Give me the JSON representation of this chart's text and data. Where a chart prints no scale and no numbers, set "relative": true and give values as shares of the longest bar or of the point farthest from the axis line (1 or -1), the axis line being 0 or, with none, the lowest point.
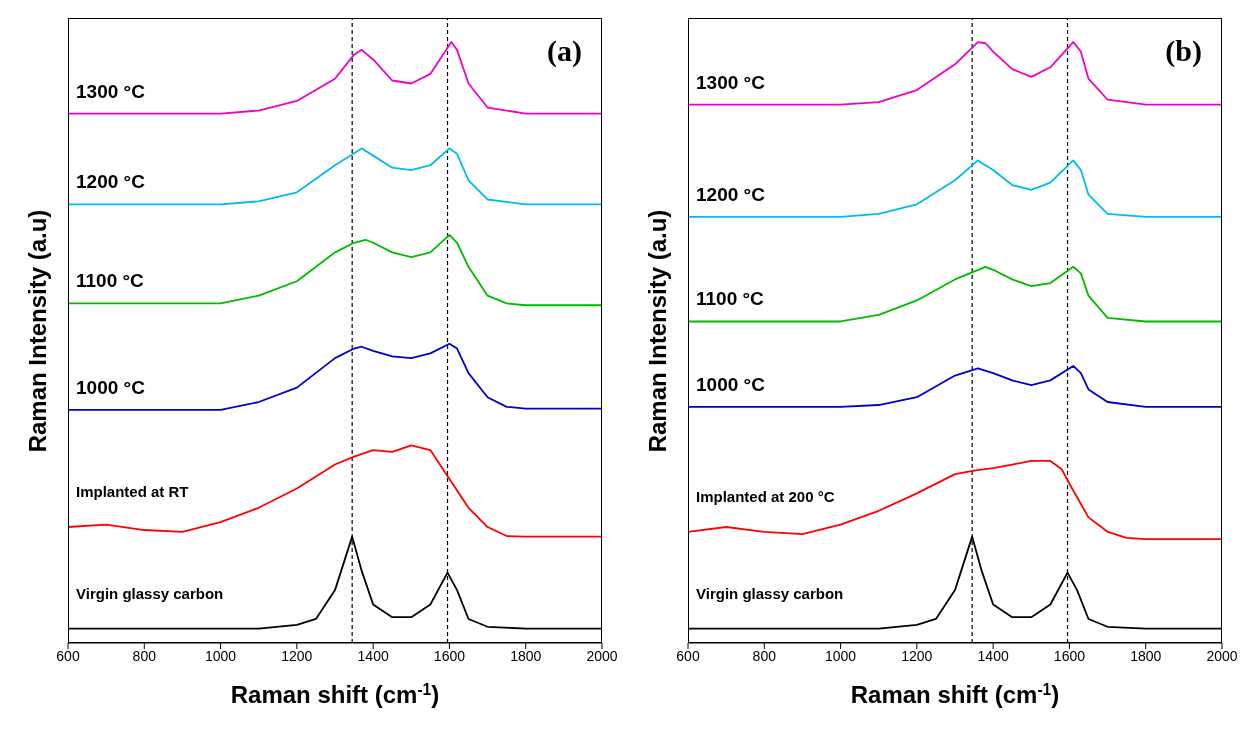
{
  "chart_data": [
    {
      "type": "line",
      "relative": true,
      "xlabel": "Raman shift (cm$^{-1}$)",
      "ylabel": "Raman Intensity (a.u)",
      "xlim": [
        600,
        2000
      ],
      "xticks": [
        600,
        800,
        1000,
        1200,
        1400,
        1600,
        1800,
        2000
      ],
      "annotations": [
        "(a)"
      ],
      "ref_lines": [
        {
          "axis": "x",
          "value": 1345,
          "line_style": "dashed",
          "color": "#000000"
        },
        {
          "axis": "x",
          "value": 1595,
          "line_style": "dashed",
          "color": "#000000"
        }
      ],
      "series": [
        {
          "name": "Virgin glassy carbon",
          "color": "#000000",
          "x": [
            600,
            800,
            1000,
            1100,
            1200,
            1250,
            1300,
            1345,
            1370,
            1400,
            1450,
            1500,
            1550,
            1595,
            1620,
            1650,
            1700,
            1800,
            2000
          ],
          "values": [
            0.024,
            0.024,
            0.024,
            0.024,
            0.03,
            0.04,
            0.088,
            0.177,
            0.12,
            0.064,
            0.043,
            0.043,
            0.064,
            0.117,
            0.088,
            0.04,
            0.027,
            0.024,
            0.024
          ]
        },
        {
          "name": "Implanted at RT",
          "color": "#ff0000",
          "x": [
            600,
            700,
            800,
            900,
            1000,
            1100,
            1200,
            1300,
            1350,
            1400,
            1450,
            1500,
            1550,
            1600,
            1650,
            1700,
            1750,
            1800,
            2000
          ],
          "values": [
            0.193,
            0.197,
            0.188,
            0.185,
            0.201,
            0.225,
            0.257,
            0.297,
            0.31,
            0.321,
            0.318,
            0.329,
            0.321,
            0.273,
            0.225,
            0.193,
            0.178,
            0.177,
            0.177
          ]
        },
        {
          "name": "1000 °C",
          "color": "#0000cc",
          "x": [
            600,
            800,
            1000,
            1100,
            1200,
            1300,
            1350,
            1370,
            1400,
            1450,
            1500,
            1550,
            1600,
            1620,
            1650,
            1700,
            1750,
            1800,
            2000
          ],
          "values": [
            0.388,
            0.388,
            0.388,
            0.401,
            0.425,
            0.474,
            0.49,
            0.493,
            0.486,
            0.477,
            0.474,
            0.482,
            0.498,
            0.49,
            0.449,
            0.409,
            0.393,
            0.39,
            0.39
          ]
        },
        {
          "name": "1100 °C",
          "color": "#00bb00",
          "x": [
            600,
            800,
            1000,
            1100,
            1200,
            1300,
            1350,
            1380,
            1400,
            1450,
            1500,
            1550,
            1600,
            1620,
            1650,
            1700,
            1750,
            1800,
            2000
          ],
          "values": [
            0.565,
            0.565,
            0.565,
            0.578,
            0.602,
            0.65,
            0.666,
            0.671,
            0.666,
            0.65,
            0.642,
            0.65,
            0.679,
            0.666,
            0.626,
            0.578,
            0.565,
            0.562,
            0.562
          ]
        },
        {
          "name": "1200 °C",
          "color": "#00bbee",
          "x": [
            600,
            800,
            1000,
            1100,
            1200,
            1300,
            1370,
            1400,
            1450,
            1500,
            1550,
            1600,
            1620,
            1650,
            1700,
            1800,
            2000
          ],
          "values": [
            0.73,
            0.73,
            0.73,
            0.735,
            0.75,
            0.795,
            0.823,
            0.811,
            0.791,
            0.787,
            0.795,
            0.823,
            0.814,
            0.77,
            0.738,
            0.73,
            0.73
          ]
        },
        {
          "name": "1300 °C",
          "color": "#ee00cc",
          "x": [
            600,
            800,
            1000,
            1100,
            1200,
            1300,
            1350,
            1370,
            1400,
            1450,
            1500,
            1550,
            1605,
            1620,
            1650,
            1700,
            1800,
            2000
          ],
          "values": [
            0.881,
            0.881,
            0.881,
            0.886,
            0.902,
            0.939,
            0.979,
            0.987,
            0.971,
            0.936,
            0.931,
            0.947,
            1.0,
            0.987,
            0.931,
            0.891,
            0.881,
            0.881
          ]
        }
      ]
    },
    {
      "type": "line",
      "relative": true,
      "xlabel": "Raman shift (cm$^{-1}$)",
      "ylabel": "Raman Intensity (a.u)",
      "xlim": [
        600,
        2000
      ],
      "xticks": [
        600,
        800,
        1000,
        1200,
        1400,
        1600,
        1800,
        2000
      ],
      "annotations": [
        "(b)"
      ],
      "ref_lines": [
        {
          "axis": "x",
          "value": 1345,
          "line_style": "dashed",
          "color": "#000000"
        },
        {
          "axis": "x",
          "value": 1595,
          "line_style": "dashed",
          "color": "#000000"
        }
      ],
      "series": [
        {
          "name": "Virgin glassy carbon",
          "color": "#000000",
          "x": [
            600,
            800,
            1000,
            1100,
            1200,
            1250,
            1300,
            1345,
            1370,
            1400,
            1450,
            1500,
            1550,
            1595,
            1620,
            1650,
            1700,
            1800,
            2000
          ],
          "values": [
            0.024,
            0.024,
            0.024,
            0.024,
            0.03,
            0.04,
            0.088,
            0.177,
            0.12,
            0.064,
            0.043,
            0.043,
            0.064,
            0.117,
            0.088,
            0.04,
            0.027,
            0.024,
            0.024
          ]
        },
        {
          "name": "Implanted at 200 °C",
          "color": "#ff0000",
          "x": [
            600,
            700,
            800,
            900,
            1000,
            1100,
            1200,
            1300,
            1350,
            1400,
            1450,
            1500,
            1550,
            1580,
            1600,
            1650,
            1700,
            1750,
            1800,
            2000
          ],
          "values": [
            0.185,
            0.193,
            0.185,
            0.181,
            0.197,
            0.22,
            0.249,
            0.281,
            0.287,
            0.291,
            0.297,
            0.303,
            0.303,
            0.289,
            0.265,
            0.209,
            0.185,
            0.175,
            0.173,
            0.173
          ]
        },
        {
          "name": "1000 °C",
          "color": "#0000cc",
          "x": [
            600,
            800,
            1000,
            1100,
            1200,
            1300,
            1360,
            1400,
            1450,
            1500,
            1550,
            1610,
            1630,
            1650,
            1700,
            1800,
            2000
          ],
          "values": [
            0.393,
            0.393,
            0.393,
            0.396,
            0.409,
            0.445,
            0.457,
            0.449,
            0.437,
            0.429,
            0.437,
            0.461,
            0.449,
            0.422,
            0.401,
            0.393,
            0.393
          ]
        },
        {
          "name": "1100 °C",
          "color": "#00bb00",
          "x": [
            600,
            800,
            1000,
            1100,
            1200,
            1300,
            1380,
            1400,
            1450,
            1500,
            1550,
            1610,
            1630,
            1650,
            1700,
            1800,
            2000
          ],
          "values": [
            0.535,
            0.535,
            0.535,
            0.546,
            0.57,
            0.605,
            0.626,
            0.621,
            0.605,
            0.594,
            0.599,
            0.626,
            0.615,
            0.578,
            0.541,
            0.535,
            0.535
          ]
        },
        {
          "name": "1200 °C",
          "color": "#00bbee",
          "x": [
            600,
            800,
            1000,
            1100,
            1200,
            1300,
            1360,
            1400,
            1450,
            1500,
            1550,
            1610,
            1630,
            1650,
            1700,
            1800,
            2000
          ],
          "values": [
            0.709,
            0.709,
            0.709,
            0.714,
            0.73,
            0.77,
            0.803,
            0.787,
            0.762,
            0.754,
            0.766,
            0.803,
            0.787,
            0.746,
            0.714,
            0.709,
            0.709
          ]
        },
        {
          "name": "1300 °C",
          "color": "#ee00cc",
          "x": [
            600,
            800,
            1000,
            1100,
            1200,
            1300,
            1360,
            1380,
            1400,
            1450,
            1500,
            1550,
            1610,
            1630,
            1650,
            1700,
            1800,
            2000
          ],
          "values": [
            0.896,
            0.896,
            0.896,
            0.9,
            0.92,
            0.963,
            1.0,
            0.998,
            0.984,
            0.955,
            0.942,
            0.958,
            1.0,
            0.984,
            0.939,
            0.904,
            0.896,
            0.896
          ]
        }
      ]
    }
  ]
}
